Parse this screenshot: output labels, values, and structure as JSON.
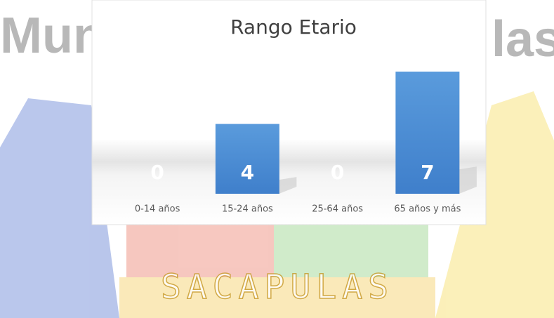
{
  "background": {
    "texts": [
      "Muni",
      "las",
      "SACAPULAS"
    ]
  },
  "chart_data": {
    "type": "bar",
    "title": "Rango Etario",
    "categories": [
      "0-14 años",
      "15-24 años",
      "25-64 años",
      "65 años y más"
    ],
    "values": [
      0,
      4,
      0,
      7
    ],
    "color": "#4a8fd6",
    "data_labels": true
  }
}
